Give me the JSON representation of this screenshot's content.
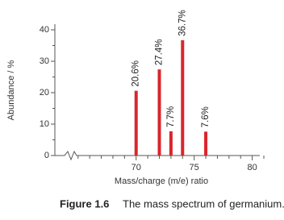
{
  "chart_data": {
    "type": "bar",
    "y_label": "Abundance / %",
    "x_label": "Mass/charge (m/e) ratio",
    "caption_label": "Figure 1.6",
    "caption_text": "The mass spectrum of germanium.",
    "x": [
      70,
      72,
      73,
      74,
      76
    ],
    "values": [
      20.6,
      27.4,
      7.7,
      36.7,
      7.6
    ],
    "value_labels": [
      "20.6%",
      "27.4%",
      "7.7%",
      "36.7%",
      "7.6%"
    ],
    "color": "#d9262c",
    "xlim": [
      63,
      81
    ],
    "xticks": [
      70,
      75,
      80
    ],
    "xminorticks": [
      65,
      66,
      67,
      68,
      69,
      71,
      72,
      73,
      74,
      76,
      77,
      78,
      79,
      81
    ],
    "ylim": [
      0,
      40
    ],
    "yticks": [
      0,
      10,
      20,
      30,
      40
    ],
    "yminorticks": [
      5,
      15,
      25,
      35
    ]
  }
}
